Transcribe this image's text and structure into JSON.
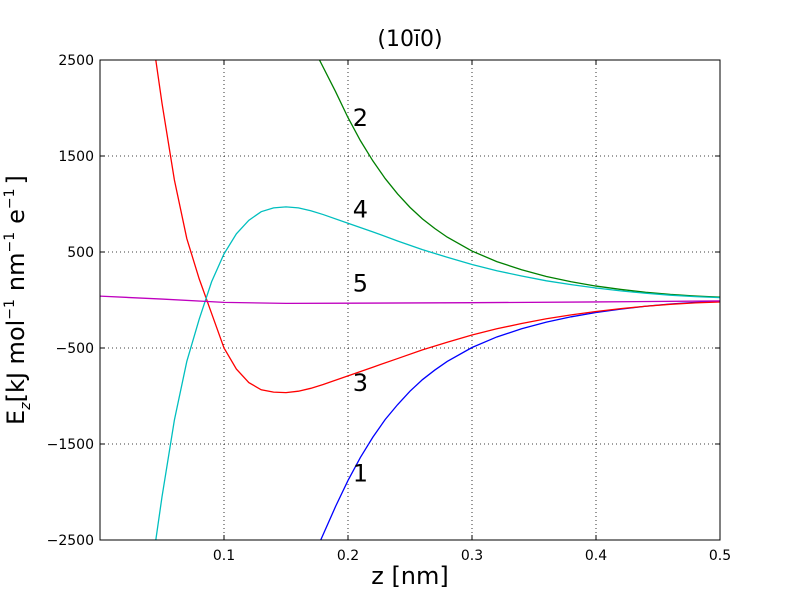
{
  "chart_data": {
    "type": "line",
    "title": "(10ī0)",
    "xlabel": "z [nm]",
    "ylabel": "E_z [kJ mol^-1 nm^-1 e^-1]",
    "ylabel_parts": {
      "main": "E",
      "sub": "z",
      "unit_a": "[kJ mol",
      "sup1": "−1",
      "unit_b": "nm",
      "sup2": "−1",
      "unit_c": "e",
      "sup3": "−1",
      "close": "]"
    },
    "xlim": [
      0.0,
      0.5
    ],
    "ylim": [
      -2500,
      2500
    ],
    "xticks": [
      0.1,
      0.2,
      0.3,
      0.4,
      0.5
    ],
    "xtick_labels": [
      "0.1",
      "0.2",
      "0.3",
      "0.4",
      "0.5"
    ],
    "yticks": [
      -2500,
      -1500,
      -500,
      500,
      1500,
      2500
    ],
    "ytick_labels": [
      "−2500",
      "−1500",
      "−500",
      "500",
      "1500",
      "2500"
    ],
    "grid": true,
    "series": [
      {
        "label": "1",
        "color": "#0000ff",
        "x": [
          0.178,
          0.19,
          0.2,
          0.21,
          0.22,
          0.23,
          0.24,
          0.25,
          0.26,
          0.27,
          0.28,
          0.3,
          0.32,
          0.34,
          0.36,
          0.38,
          0.4,
          0.42,
          0.44,
          0.46,
          0.48,
          0.5
        ],
        "y": [
          -2500,
          -2150,
          -1880,
          -1640,
          -1430,
          -1245,
          -1090,
          -950,
          -830,
          -730,
          -640,
          -495,
          -385,
          -300,
          -230,
          -175,
          -130,
          -95,
          -65,
          -42,
          -25,
          -12
        ],
        "label_pos": [
          0.21,
          -1890
        ]
      },
      {
        "label": "2",
        "color": "#008000",
        "x": [
          0.177,
          0.19,
          0.2,
          0.21,
          0.22,
          0.23,
          0.24,
          0.25,
          0.26,
          0.27,
          0.28,
          0.3,
          0.32,
          0.34,
          0.36,
          0.38,
          0.4,
          0.42,
          0.44,
          0.46,
          0.48,
          0.5
        ],
        "y": [
          2500,
          2170,
          1900,
          1660,
          1450,
          1265,
          1105,
          965,
          845,
          745,
          655,
          510,
          400,
          315,
          245,
          190,
          145,
          110,
          80,
          58,
          42,
          30
        ],
        "label_pos": [
          0.21,
          1810
        ]
      },
      {
        "label": "3",
        "color": "#ff0000",
        "x": [
          0.045,
          0.05,
          0.06,
          0.07,
          0.08,
          0.09,
          0.1,
          0.11,
          0.12,
          0.13,
          0.14,
          0.15,
          0.16,
          0.17,
          0.18,
          0.2,
          0.22,
          0.24,
          0.26,
          0.28,
          0.3,
          0.32,
          0.34,
          0.36,
          0.38,
          0.4,
          0.42,
          0.44,
          0.46,
          0.48,
          0.5
        ],
        "y": [
          2500,
          2050,
          1250,
          640,
          220,
          -140,
          -500,
          -720,
          -860,
          -935,
          -960,
          -965,
          -950,
          -920,
          -880,
          -790,
          -700,
          -610,
          -520,
          -440,
          -365,
          -300,
          -245,
          -195,
          -155,
          -120,
          -90,
          -65,
          -45,
          -30,
          -20
        ],
        "label_pos": [
          0.21,
          -950
        ]
      },
      {
        "label": "4",
        "color": "#00bfbf",
        "x": [
          0.045,
          0.05,
          0.06,
          0.07,
          0.08,
          0.09,
          0.1,
          0.11,
          0.12,
          0.13,
          0.14,
          0.15,
          0.16,
          0.17,
          0.18,
          0.2,
          0.22,
          0.24,
          0.26,
          0.28,
          0.3,
          0.32,
          0.34,
          0.36,
          0.38,
          0.4,
          0.42,
          0.44,
          0.46,
          0.48,
          0.5
        ],
        "y": [
          -2500,
          -2050,
          -1250,
          -640,
          -200,
          190,
          480,
          690,
          830,
          920,
          960,
          970,
          960,
          930,
          890,
          800,
          710,
          615,
          525,
          445,
          370,
          305,
          250,
          200,
          160,
          125,
          95,
          70,
          50,
          35,
          25
        ],
        "label_pos": [
          0.21,
          860
        ]
      },
      {
        "label": "5",
        "color": "#bf00bf",
        "x": [
          0.0,
          0.05,
          0.1,
          0.15,
          0.2,
          0.3,
          0.4,
          0.5
        ],
        "y": [
          40,
          10,
          -25,
          -35,
          -33,
          -28,
          -20,
          -10
        ],
        "label_pos": [
          0.21,
          90
        ]
      }
    ]
  }
}
